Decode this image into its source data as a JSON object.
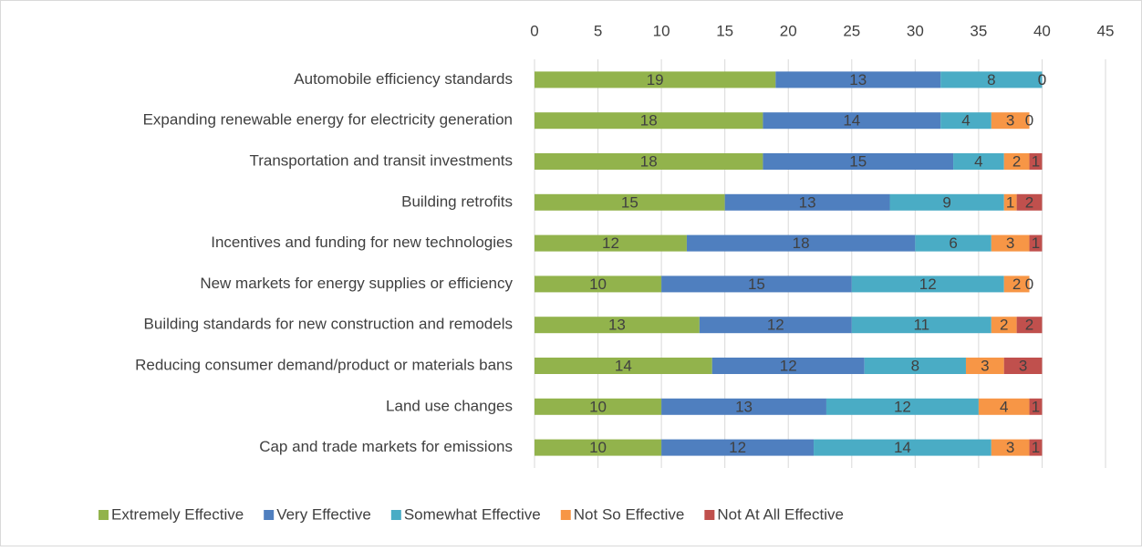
{
  "chart_data": {
    "type": "stacked_bar_horizontal",
    "categories": [
      "Automobile efficiency standards",
      "Expanding renewable energy for electricity generation",
      "Transportation and transit investments",
      "Building retrofits",
      "Incentives and funding for new technologies",
      "New markets for energy supplies or efficiency",
      "Building standards for new construction and remodels",
      "Reducing consumer demand/product or materials bans",
      "Land use changes",
      "Cap and trade markets for emissions"
    ],
    "series": [
      {
        "name": "Extremely Effective",
        "color": "#92b34c",
        "values": [
          19,
          18,
          18,
          15,
          12,
          10,
          13,
          14,
          10,
          10
        ]
      },
      {
        "name": "Very Effective",
        "color": "#4f7fbf",
        "values": [
          13,
          14,
          15,
          13,
          18,
          15,
          12,
          12,
          13,
          12
        ]
      },
      {
        "name": "Somewhat Effective",
        "color": "#4aacc5",
        "values": [
          8,
          4,
          4,
          9,
          6,
          12,
          11,
          8,
          12,
          14
        ]
      },
      {
        "name": "Not So Effective",
        "color": "#f79646",
        "values": [
          0,
          3,
          2,
          1,
          3,
          2,
          2,
          3,
          4,
          3
        ]
      },
      {
        "name": "Not At All Effective",
        "color": "#c0504d",
        "values": [
          0,
          0,
          1,
          2,
          1,
          0,
          2,
          3,
          1,
          1
        ]
      }
    ],
    "xlim": [
      0,
      45
    ],
    "xticks": [
      0,
      5,
      10,
      15,
      20,
      25,
      30,
      35,
      40,
      45
    ],
    "grid": true,
    "legend": "bottom"
  }
}
